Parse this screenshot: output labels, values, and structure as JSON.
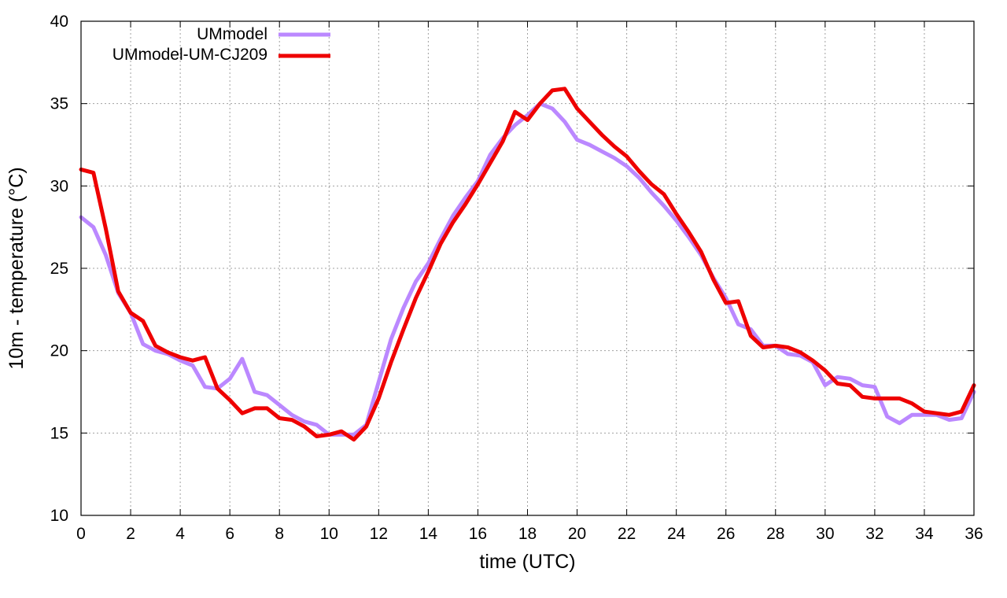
{
  "chart_data": {
    "type": "line",
    "xlabel": "time (UTC)",
    "ylabel": "10m - temperature (°C)",
    "xlim": [
      0,
      36
    ],
    "ylim": [
      10,
      40
    ],
    "xticks": [
      0,
      2,
      4,
      6,
      8,
      10,
      12,
      14,
      16,
      18,
      20,
      22,
      24,
      26,
      28,
      30,
      32,
      34,
      36
    ],
    "yticks": [
      10,
      15,
      20,
      25,
      30,
      35,
      40
    ],
    "grid": true,
    "legend_position": "top-left",
    "series": [
      {
        "name": "UMmodel",
        "color": "#bb88ff",
        "x": [
          0,
          0.5,
          1,
          1.5,
          2,
          2.5,
          3,
          3.5,
          4,
          4.5,
          5,
          5.5,
          6,
          6.5,
          7,
          7.5,
          8,
          8.5,
          9,
          9.5,
          10,
          10.5,
          11,
          11.5,
          12,
          12.5,
          13,
          13.5,
          14,
          14.5,
          15,
          15.5,
          16,
          16.5,
          17,
          17.5,
          18,
          18.5,
          19,
          19.5,
          20,
          20.5,
          21,
          21.5,
          22,
          22.5,
          23,
          23.5,
          24,
          24.5,
          25,
          25.5,
          26,
          26.5,
          27,
          27.5,
          28,
          28.5,
          29,
          29.5,
          30,
          30.5,
          31,
          31.5,
          32,
          32.5,
          33,
          33.5,
          34,
          34.5,
          35,
          35.5,
          36
        ],
        "y": [
          28.1,
          27.5,
          25.8,
          23.5,
          22.3,
          20.4,
          20.0,
          19.8,
          19.4,
          19.1,
          17.8,
          17.7,
          18.3,
          19.5,
          17.5,
          17.3,
          16.7,
          16.1,
          15.7,
          15.5,
          14.9,
          14.9,
          14.9,
          15.5,
          18.1,
          20.7,
          22.6,
          24.2,
          25.3,
          26.8,
          28.2,
          29.3,
          30.3,
          31.9,
          32.9,
          33.7,
          34.3,
          35.0,
          34.7,
          33.9,
          32.8,
          32.5,
          32.1,
          31.7,
          31.2,
          30.5,
          29.6,
          28.8,
          27.9,
          26.9,
          25.8,
          24.4,
          23.2,
          21.6,
          21.3,
          20.3,
          20.3,
          19.8,
          19.7,
          19.3,
          17.9,
          18.4,
          18.3,
          17.9,
          17.8,
          16.0,
          15.6,
          16.1,
          16.1,
          16.1,
          15.8,
          15.9,
          17.5
        ]
      },
      {
        "name": "UMmodel-UM-CJ209",
        "color": "#ee0000",
        "x": [
          0,
          0.5,
          1,
          1.5,
          2,
          2.5,
          3,
          3.5,
          4,
          4.5,
          5,
          5.5,
          6,
          6.5,
          7,
          7.5,
          8,
          8.5,
          9,
          9.5,
          10,
          10.5,
          11,
          11.5,
          12,
          12.5,
          13,
          13.5,
          14,
          14.5,
          15,
          15.5,
          16,
          16.5,
          17,
          17.5,
          18,
          18.5,
          19,
          19.5,
          20,
          20.5,
          21,
          21.5,
          22,
          22.5,
          23,
          23.5,
          24,
          24.5,
          25,
          25.5,
          26,
          26.5,
          27,
          27.5,
          28,
          28.5,
          29,
          29.5,
          30,
          30.5,
          31,
          31.5,
          32,
          32.5,
          33,
          33.5,
          34,
          34.5,
          35,
          35.5,
          36
        ],
        "y": [
          31.0,
          30.8,
          27.4,
          23.6,
          22.3,
          21.8,
          20.3,
          19.9,
          19.6,
          19.4,
          19.6,
          17.7,
          17.0,
          16.2,
          16.5,
          16.5,
          15.9,
          15.8,
          15.4,
          14.8,
          14.9,
          15.1,
          14.6,
          15.4,
          17.1,
          19.3,
          21.3,
          23.2,
          24.8,
          26.5,
          27.8,
          28.9,
          30.1,
          31.4,
          32.7,
          34.5,
          34.0,
          35.0,
          35.8,
          35.9,
          34.7,
          33.9,
          33.1,
          32.4,
          31.8,
          30.9,
          30.1,
          29.5,
          28.3,
          27.2,
          26.0,
          24.3,
          22.9,
          23.0,
          20.9,
          20.2,
          20.3,
          20.2,
          19.9,
          19.4,
          18.8,
          18.0,
          17.9,
          17.2,
          17.1,
          17.1,
          17.1,
          16.8,
          16.3,
          16.2,
          16.1,
          16.3,
          17.9
        ]
      }
    ]
  }
}
